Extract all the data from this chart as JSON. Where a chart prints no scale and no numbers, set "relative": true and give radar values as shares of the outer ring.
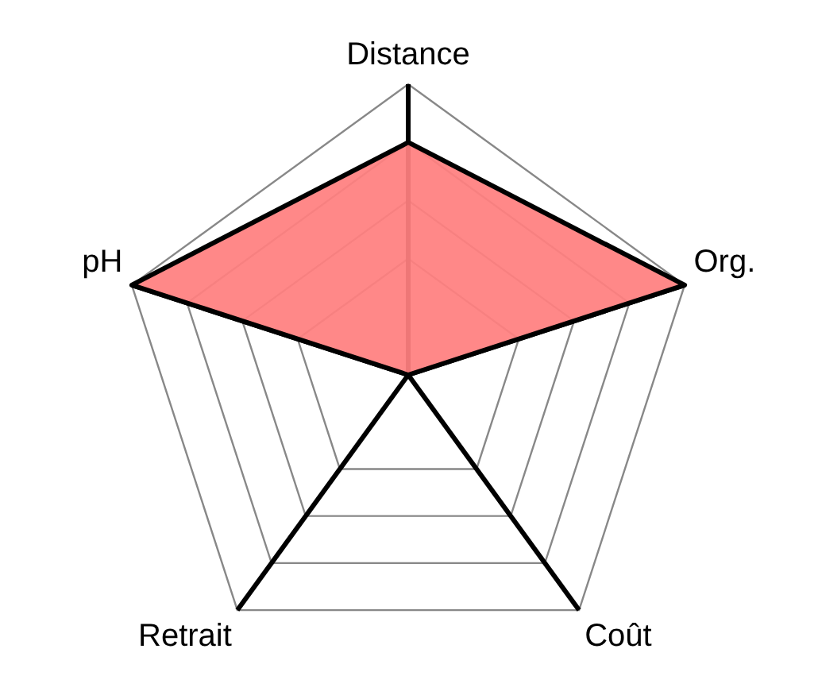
{
  "chart_data": {
    "type": "radar",
    "relative": true,
    "categories": [
      "Distance",
      "Org.",
      "Coût",
      "Retrait",
      "pH"
    ],
    "series": [
      {
        "color": "#ff8080",
        "values": [
          0.8,
          1,
          0,
          0,
          1
        ]
      }
    ]
  }
}
